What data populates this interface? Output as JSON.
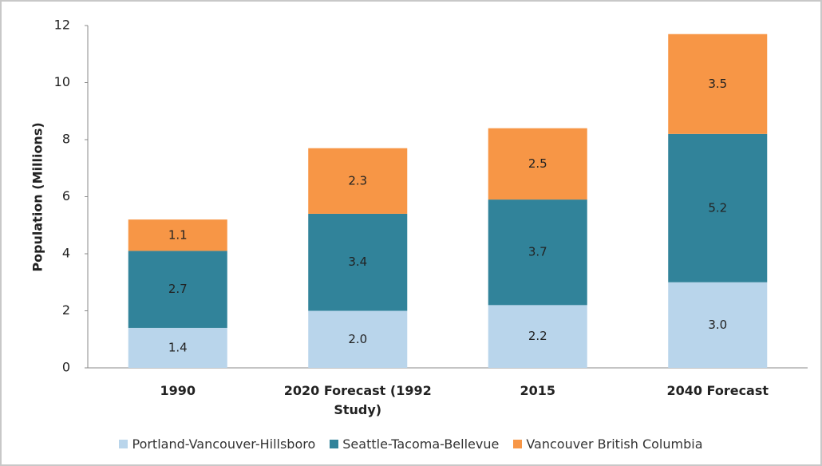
{
  "chart_data": {
    "type": "stacked_bar",
    "ylabel": "Population (Millions)",
    "categories": [
      "1990",
      "2020 Forecast (1992 Study)",
      "2015",
      "2040 Forecast"
    ],
    "series": [
      {
        "name": "Portland-Vancouver-Hillsboro",
        "color": "#b9d5eb",
        "values": [
          1.4,
          2.0,
          2.2,
          3.0
        ],
        "value_labels": [
          "1.4",
          "2.0",
          "2.2",
          "3.0"
        ]
      },
      {
        "name": "Seattle-Tacoma-Bellevue",
        "color": "#31839a",
        "values": [
          2.7,
          3.4,
          3.7,
          5.2
        ],
        "value_labels": [
          "2.7",
          "3.4",
          "3.7",
          "5.2"
        ]
      },
      {
        "name": "Vancouver British Columbia",
        "color": "#f79646",
        "values": [
          1.1,
          2.3,
          2.5,
          3.5
        ],
        "value_labels": [
          "1.1",
          "2.3",
          "2.5",
          "3.5"
        ]
      }
    ],
    "ylim": [
      0,
      12
    ],
    "yticks": [
      0,
      2,
      4,
      6,
      8,
      10,
      12
    ],
    "grid": false,
    "legend": "bottom"
  }
}
